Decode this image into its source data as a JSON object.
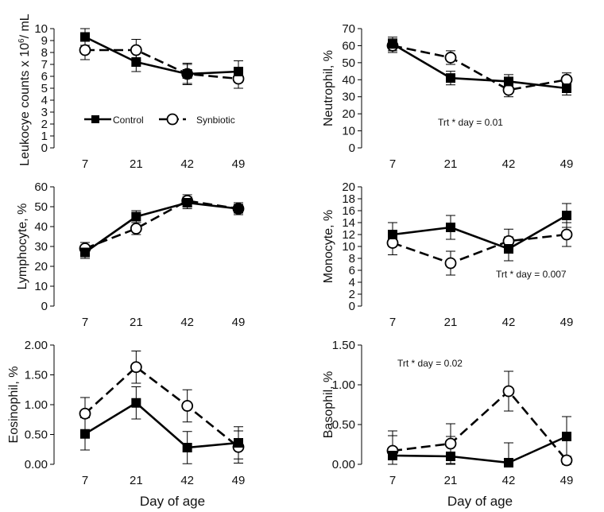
{
  "figure": {
    "xlabel": "Day of age",
    "legend": {
      "control_label": "Control",
      "synbiotic_label": "Synbiotic"
    }
  },
  "chart_data": [
    {
      "type": "line",
      "panel": "top-left",
      "ylabel_prefix": "Leukocye counts x 10",
      "ylabel_sup": "6",
      "ylabel_suffix": "/ mL",
      "categories": [
        "7",
        "21",
        "42",
        "49"
      ],
      "ylim": [
        0,
        10
      ],
      "yticks": [
        "0",
        "1",
        "2",
        "3",
        "4",
        "5",
        "6",
        "7",
        "8",
        "9",
        "10"
      ],
      "annotation": "",
      "legend_shown": true,
      "series": [
        {
          "name": "Control",
          "marker": "filled-square",
          "values": [
            9.3,
            7.2,
            6.2,
            6.4
          ],
          "errors": [
            0.7,
            0.8,
            0.9,
            0.9
          ]
        },
        {
          "name": "Synbiotic",
          "marker": "open-circle",
          "values": [
            8.2,
            8.2,
            6.2,
            5.8
          ],
          "errors": [
            0.8,
            0.9,
            0.8,
            0.8
          ]
        }
      ]
    },
    {
      "type": "line",
      "panel": "top-right",
      "ylabel": "Neutrophil, %",
      "categories": [
        "7",
        "21",
        "42",
        "49"
      ],
      "ylim": [
        0,
        70
      ],
      "yticks": [
        "0",
        "10",
        "20",
        "30",
        "40",
        "50",
        "60",
        "70"
      ],
      "annotation": "Trt * day = 0.01",
      "series": [
        {
          "name": "Control",
          "marker": "filled-square",
          "values": [
            61,
            41,
            39,
            35
          ],
          "errors": [
            4,
            4,
            4,
            4
          ]
        },
        {
          "name": "Synbiotic",
          "marker": "open-circle",
          "values": [
            60,
            53,
            34,
            40
          ],
          "errors": [
            4,
            4,
            4,
            4
          ]
        }
      ]
    },
    {
      "type": "line",
      "panel": "middle-left",
      "ylabel": "Lymphocyte, %",
      "categories": [
        "7",
        "21",
        "42",
        "49"
      ],
      "ylim": [
        0,
        60
      ],
      "yticks": [
        "0",
        "10",
        "20",
        "30",
        "40",
        "50",
        "60"
      ],
      "annotation": "",
      "series": [
        {
          "name": "Control",
          "marker": "filled-square",
          "values": [
            27,
            45,
            52,
            49
          ],
          "errors": [
            3,
            3,
            3,
            3
          ]
        },
        {
          "name": "Synbiotic",
          "marker": "open-circle",
          "values": [
            29,
            39,
            53,
            49
          ],
          "errors": [
            3,
            3,
            3,
            3
          ]
        }
      ]
    },
    {
      "type": "line",
      "panel": "middle-right",
      "ylabel": "Monocyte, %",
      "categories": [
        "7",
        "21",
        "42",
        "49"
      ],
      "ylim": [
        0,
        20
      ],
      "yticks": [
        "0",
        "2",
        "4",
        "6",
        "8",
        "10",
        "12",
        "14",
        "16",
        "18",
        "20"
      ],
      "annotation": "Trt * day = 0.007",
      "series": [
        {
          "name": "Control",
          "marker": "filled-square",
          "values": [
            12,
            13.2,
            9.6,
            15.2
          ],
          "errors": [
            2,
            2,
            2,
            2
          ]
        },
        {
          "name": "Synbiotic",
          "marker": "open-circle",
          "values": [
            10.6,
            7.2,
            10.9,
            12
          ],
          "errors": [
            2,
            2,
            2,
            2
          ]
        }
      ]
    },
    {
      "type": "line",
      "panel": "bottom-left",
      "ylabel": "Eosinophil, %",
      "categories": [
        "7",
        "21",
        "42",
        "49"
      ],
      "ylim": [
        0,
        2
      ],
      "yticks": [
        "0.00",
        "0.50",
        "1.00",
        "1.50",
        "2.00"
      ],
      "annotation": "",
      "series": [
        {
          "name": "Control",
          "marker": "filled-square",
          "values": [
            0.51,
            1.03,
            0.28,
            0.36
          ],
          "errors": [
            0.27,
            0.27,
            0.27,
            0.27
          ]
        },
        {
          "name": "Synbiotic",
          "marker": "open-circle",
          "values": [
            0.85,
            1.63,
            0.98,
            0.29
          ],
          "errors": [
            0.27,
            0.27,
            0.27,
            0.27
          ]
        }
      ]
    },
    {
      "type": "line",
      "panel": "bottom-right",
      "ylabel": "Basophil, %",
      "categories": [
        "7",
        "21",
        "42",
        "49"
      ],
      "ylim": [
        0,
        1.5
      ],
      "yticks": [
        "0.00",
        "0.50",
        "1.00",
        "1.50"
      ],
      "annotation": "Trt * day = 0.02",
      "series": [
        {
          "name": "Control",
          "marker": "filled-square",
          "values": [
            0.11,
            0.1,
            0.02,
            0.35
          ],
          "errors": [
            0.25,
            0.25,
            0.25,
            0.25
          ]
        },
        {
          "name": "Synbiotic",
          "marker": "open-circle",
          "values": [
            0.17,
            0.26,
            0.92,
            0.05
          ],
          "errors": [
            0.25,
            0.25,
            0.25,
            0.25
          ]
        }
      ]
    }
  ]
}
